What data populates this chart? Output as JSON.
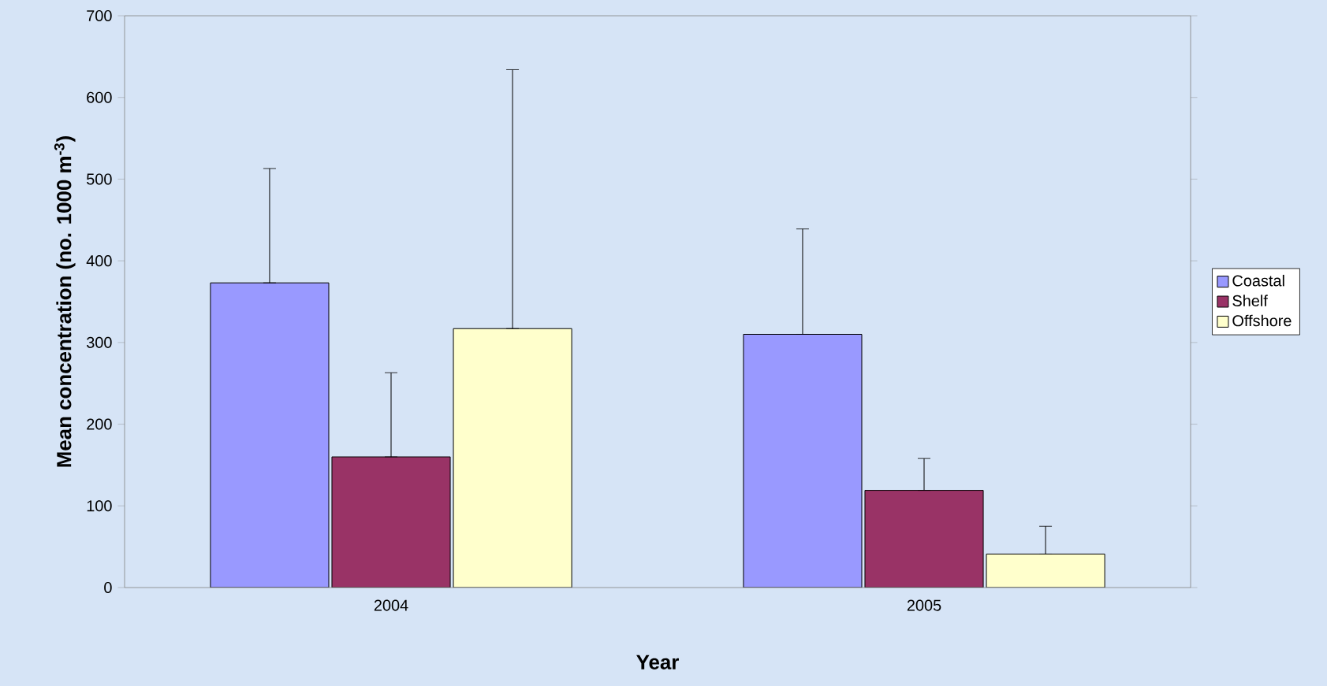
{
  "chart_data": {
    "type": "bar",
    "xlabel": "Year",
    "ylabel": "Mean concentration (no. 1000 m$^{-3}$)",
    "categories": [
      "2004",
      "2005"
    ],
    "series": [
      {
        "name": "Coastal",
        "color": "#9999ff",
        "values": [
          373,
          310
        ],
        "errors": [
          [
            373,
            513
          ],
          [
            310,
            439
          ]
        ]
      },
      {
        "name": "Shelf",
        "color": "#993366",
        "values": [
          160,
          119
        ],
        "errors": [
          [
            160,
            263
          ],
          [
            119,
            158
          ]
        ]
      },
      {
        "name": "Offshore",
        "color": "#ffffcc",
        "values": [
          317,
          41
        ],
        "errors": [
          [
            317,
            634
          ],
          [
            41,
            75
          ]
        ]
      }
    ],
    "ylim": [
      0,
      700
    ],
    "yticks": [
      0,
      100,
      200,
      300,
      400,
      500,
      600,
      700
    ],
    "legend": "right"
  }
}
